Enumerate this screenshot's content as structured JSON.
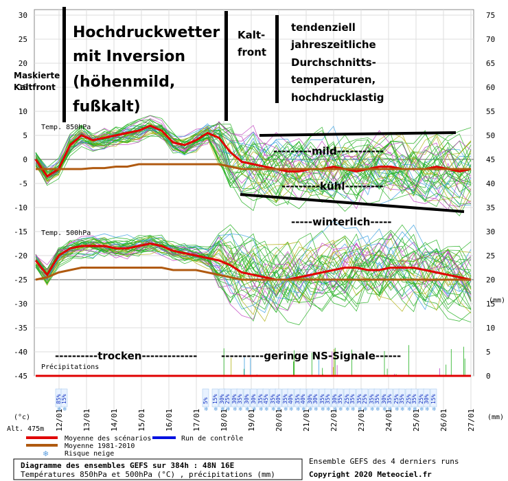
{
  "chart_data": {
    "type": "line",
    "x_ticks": [
      "12/01",
      "13/01",
      "14/01",
      "15/01",
      "16/01",
      "17/01",
      "18/01",
      "19/01",
      "20/01",
      "21/01",
      "22/01",
      "23/01",
      "24/01",
      "25/01",
      "26/01",
      "27/01"
    ],
    "x_unit": "(°c)",
    "altitude": "Alt. 475m",
    "y_left_ticks": [
      30,
      25,
      20,
      15,
      10,
      5,
      0,
      -5,
      -10,
      -15,
      -20,
      -25,
      -30,
      -35,
      -40,
      -45
    ],
    "y_right_ticks": [
      75,
      70,
      65,
      60,
      55,
      50,
      45,
      40,
      35,
      30,
      25,
      20,
      15,
      10,
      5,
      0
    ],
    "y_right_unit": "(mm)",
    "panel_labels": {
      "t850": "Temp. 850hPa",
      "t500": "Temp. 500hPa",
      "precip": "Précipitations"
    },
    "series": [
      {
        "name": "Moyenne des scénarios",
        "color": "#e00000",
        "role": "t850",
        "values": [
          0,
          -3.5,
          -2,
          3,
          5,
          4,
          4.5,
          5,
          5.5,
          6,
          7,
          6,
          3.5,
          3,
          4,
          5.5,
          4.5,
          1.5,
          -0.5,
          -1,
          -1.5,
          -2,
          -2.5,
          -2.5,
          -2,
          -2,
          -1.5,
          -2,
          -2.5,
          -2,
          -1.5,
          -1.5,
          -2,
          -2,
          -2,
          -1.5,
          -2,
          -2.5,
          -2
        ]
      },
      {
        "name": "Moyenne 1981-2010",
        "color": "#b05a10",
        "role": "t850",
        "values": [
          -2,
          -2,
          -2,
          -2,
          -2,
          -1.8,
          -1.8,
          -1.5,
          -1.5,
          -1,
          -1,
          -1,
          -1,
          -1,
          -1,
          -1,
          -1,
          -1.5,
          -2,
          -2,
          -2,
          -2,
          -2,
          -2,
          -2,
          -2,
          -2,
          -2,
          -2,
          -2,
          -2,
          -2,
          -2,
          -2,
          -2,
          -2,
          -2,
          -2,
          -2
        ]
      },
      {
        "name": "Moyenne des scénarios",
        "color": "#e00000",
        "role": "t500",
        "values": [
          -21,
          -24,
          -20,
          -18.5,
          -18,
          -18,
          -18,
          -18.5,
          -18.5,
          -18,
          -17.5,
          -18,
          -19,
          -19.5,
          -20,
          -20.5,
          -21,
          -22,
          -23.5,
          -24,
          -24.5,
          -25,
          -25,
          -24.5,
          -24,
          -23.5,
          -23,
          -22.5,
          -22.5,
          -23,
          -23,
          -22.5,
          -22.5,
          -22.5,
          -23,
          -23.5,
          -24,
          -24.5,
          -25
        ]
      },
      {
        "name": "Moyenne 1981-2010",
        "color": "#b05a10",
        "role": "t500",
        "values": [
          -25,
          -24.5,
          -23.5,
          -23,
          -22.5,
          -22.5,
          -22.5,
          -22.5,
          -22.5,
          -22.5,
          -22.5,
          -22.5,
          -23,
          -23,
          -23,
          -23.5,
          -24,
          -24.5,
          -25,
          -25,
          -25,
          -25,
          -25,
          -25,
          -25,
          -25,
          -25,
          -25,
          -25,
          -25,
          -25,
          -25,
          -25,
          -25,
          -25,
          -25,
          -25,
          -25,
          -25
        ]
      },
      {
        "name": "Moyenne des scénarios",
        "color": "#e00000",
        "role": "precip",
        "values": [
          0,
          0,
          0,
          0,
          0,
          0,
          0,
          0,
          0,
          0,
          0,
          0,
          0,
          0,
          0,
          0,
          0,
          0,
          0,
          0,
          0,
          0,
          0,
          0,
          0,
          0,
          0,
          0,
          0,
          0,
          0,
          0,
          0,
          0,
          0,
          0,
          0,
          0,
          0
        ]
      }
    ],
    "snow_risk": [
      {
        "date_index": 0.15,
        "pct": "85%"
      },
      {
        "date_index": 0.35,
        "pct": "15%"
      },
      {
        "date_index": 5.5,
        "pct": "5%"
      },
      {
        "date_index": 5.85,
        "pct": "15%"
      },
      {
        "date_index": 6.1,
        "pct": "30%"
      },
      {
        "date_index": 6.3,
        "pct": "25%"
      },
      {
        "date_index": 6.55,
        "pct": "30%"
      },
      {
        "date_index": 6.75,
        "pct": "35%"
      },
      {
        "date_index": 7.0,
        "pct": "30%"
      },
      {
        "date_index": 7.25,
        "pct": "30%"
      },
      {
        "date_index": 7.5,
        "pct": "35%"
      },
      {
        "date_index": 7.7,
        "pct": "45%"
      },
      {
        "date_index": 7.95,
        "pct": "35%"
      },
      {
        "date_index": 8.15,
        "pct": "40%"
      },
      {
        "date_index": 8.4,
        "pct": "35%"
      },
      {
        "date_index": 8.6,
        "pct": "40%"
      },
      {
        "date_index": 8.85,
        "pct": "35%"
      },
      {
        "date_index": 9.05,
        "pct": "40%"
      },
      {
        "date_index": 9.3,
        "pct": "30%"
      },
      {
        "date_index": 9.5,
        "pct": "30%"
      },
      {
        "date_index": 9.75,
        "pct": "35%"
      },
      {
        "date_index": 9.95,
        "pct": "35%"
      },
      {
        "date_index": 10.2,
        "pct": "30%"
      },
      {
        "date_index": 10.4,
        "pct": "35%"
      },
      {
        "date_index": 10.65,
        "pct": "25%"
      },
      {
        "date_index": 10.85,
        "pct": "35%"
      },
      {
        "date_index": 11.1,
        "pct": "35%"
      },
      {
        "date_index": 11.3,
        "pct": "25%"
      },
      {
        "date_index": 11.55,
        "pct": "35%"
      },
      {
        "date_index": 11.75,
        "pct": "35%"
      },
      {
        "date_index": 12.0,
        "pct": "30%"
      },
      {
        "date_index": 12.2,
        "pct": "35%"
      },
      {
        "date_index": 12.45,
        "pct": "25%"
      },
      {
        "date_index": 12.65,
        "pct": "35%"
      },
      {
        "date_index": 12.9,
        "pct": "25%"
      },
      {
        "date_index": 13.1,
        "pct": "35%"
      },
      {
        "date_index": 13.35,
        "pct": "25%"
      },
      {
        "date_index": 13.55,
        "pct": "30%"
      },
      {
        "date_index": 13.8,
        "pct": "15%"
      }
    ],
    "legend": {
      "mean": "Moyenne des scénarios",
      "control": "Run de contrôle",
      "climo": "Moyenne 1981-2010",
      "snow": "Risque neige"
    }
  },
  "annotations": {
    "maskiert": [
      "Maskierte",
      "Kaltfront"
    ],
    "hochdruck": [
      "Hochdruckwetter",
      "mit Inversion",
      "(höhenmild,",
      "fußkalt)"
    ],
    "kaltfront": [
      "Kalt-",
      "front"
    ],
    "tendenz": [
      "tendenziell",
      "jahreszeitliche",
      "Durchschnitts-",
      "temperaturen,",
      "hochdrucklastig"
    ],
    "mild": "---------mild-----------",
    "kuehl": "---------kühl---------",
    "winterlich": "-----winterlich-----",
    "trocken": "----------trocken-------------",
    "ns_signale": "----------geringe NS-Signale------"
  },
  "footer": {
    "title": "Diagramme des ensembles GEFS sur 384h : 48N 16E",
    "subtitle": "Températures 850hPa et 500hPa (°C) , précipitations (mm)",
    "runs": "Ensemble GEFS des 4 derniers runs",
    "copyright": "Copyright 2020 Meteociel.fr"
  }
}
